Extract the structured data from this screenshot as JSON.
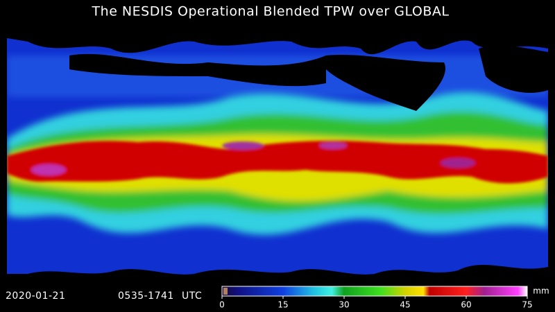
{
  "title": "The NESDIS Operational Blended TPW over GLOBAL",
  "timestamp": {
    "date": "2020-01-21",
    "range": "0535-1741",
    "zone": "UTC"
  },
  "colorbar": {
    "min": 0,
    "max": 75,
    "ticks": [
      0,
      15,
      30,
      45,
      60,
      75
    ],
    "unit": "mm"
  }
}
